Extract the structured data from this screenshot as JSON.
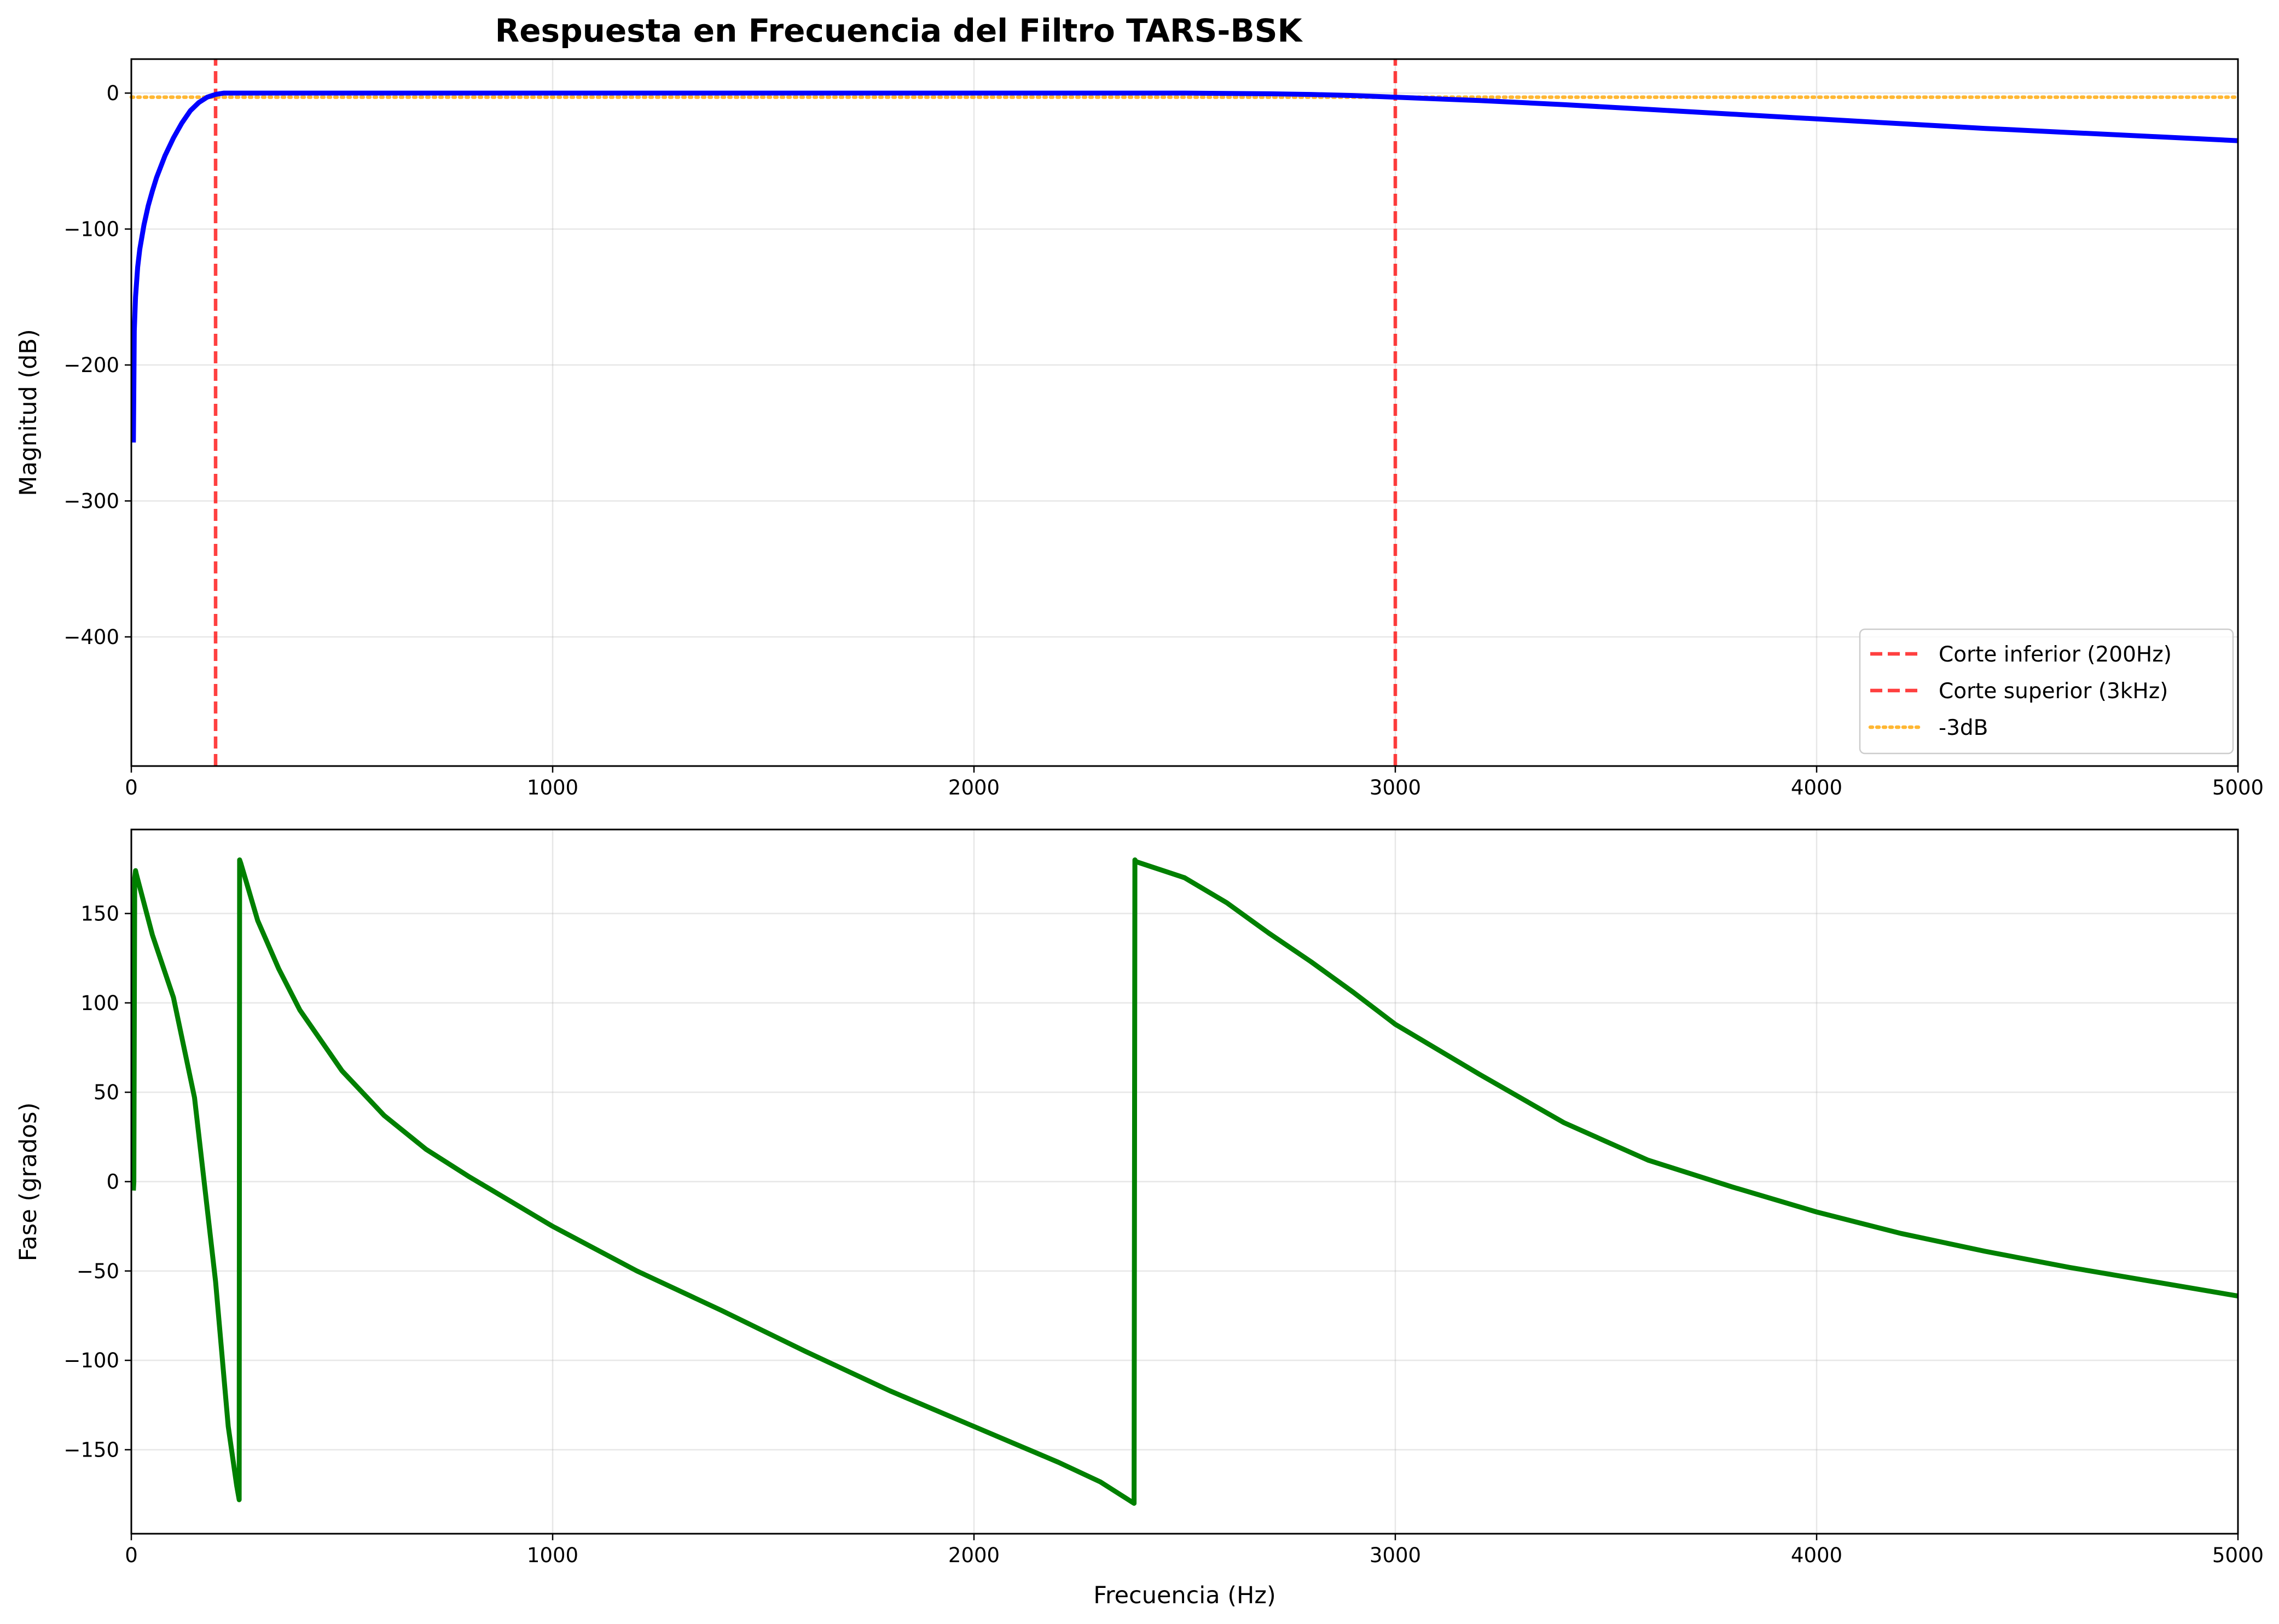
{
  "chart_data": [
    {
      "type": "line",
      "title": "Respuesta en Frecuencia del Filtro TARS-BSK",
      "xlabel": "",
      "ylabel": "Magnitud (dB)",
      "xlim": [
        0,
        5000
      ],
      "ylim": [
        -495,
        25
      ],
      "xticks": [
        0,
        1000,
        2000,
        3000,
        4000,
        5000
      ],
      "xtick_labels": [
        "0",
        "1000",
        "2000",
        "3000",
        "4000",
        "5000"
      ],
      "yticks": [
        0,
        -100,
        -200,
        -300,
        -400
      ],
      "ytick_labels": [
        "0",
        "−100",
        "−200",
        "−300",
        "−400"
      ],
      "grid": true,
      "legend": "lower-right",
      "series": [
        {
          "color": "#0000ff",
          "style": "solid",
          "x": [
            5,
            7,
            10,
            15,
            20,
            30,
            40,
            50,
            60,
            80,
            100,
            120,
            140,
            160,
            180,
            200,
            220,
            250,
            300,
            500,
            1000,
            1500,
            2000,
            2500,
            2700,
            2800,
            2900,
            3000,
            3200,
            3400,
            3600,
            3800,
            4000,
            4200,
            4400,
            4600,
            4800,
            5000
          ],
          "y": [
            -257,
            -175,
            -150,
            -128,
            -115,
            -97,
            -83,
            -72,
            -62,
            -46,
            -33,
            -22,
            -13,
            -7,
            -3,
            -1,
            0,
            0,
            0,
            0,
            0,
            0,
            0,
            0,
            -0.5,
            -1,
            -1.8,
            -3,
            -5.5,
            -8.5,
            -12,
            -15.5,
            -19,
            -22.5,
            -26,
            -29,
            -32,
            -35
          ]
        },
        {
          "name": "Corte inferior (200Hz)",
          "color": "#ff0000",
          "style": "dashed",
          "x": [
            200,
            200
          ],
          "y": [
            -495,
            25
          ]
        },
        {
          "name": "Corte superior (3kHz)",
          "color": "#ff0000",
          "style": "dashed",
          "x": [
            3000,
            3000
          ],
          "y": [
            -495,
            25
          ]
        },
        {
          "name": "-3dB",
          "color": "#ffa500",
          "style": "dotted",
          "x": [
            0,
            5000
          ],
          "y": [
            -3,
            -3
          ]
        }
      ]
    },
    {
      "type": "line",
      "title": "",
      "xlabel": "Frecuencia (Hz)",
      "ylabel": "Fase (grados)",
      "xlim": [
        0,
        5000
      ],
      "ylim": [
        -197,
        197
      ],
      "xticks": [
        0,
        1000,
        2000,
        3000,
        4000,
        5000
      ],
      "xtick_labels": [
        "0",
        "1000",
        "2000",
        "3000",
        "4000",
        "5000"
      ],
      "yticks": [
        150,
        100,
        50,
        0,
        -50,
        -100,
        -150
      ],
      "ytick_labels": [
        "150",
        "100",
        "50",
        "0",
        "−50",
        "−100",
        "−150"
      ],
      "grid": true,
      "series": [
        {
          "color": "#008000",
          "style": "solid",
          "x": [
            5,
            6,
            8,
            10,
            12,
            50,
            100,
            150,
            200,
            230,
            250,
            256,
            257,
            260,
            270,
            300,
            350,
            400,
            500,
            600,
            700,
            800,
            900,
            1000,
            1200,
            1400,
            1600,
            1800,
            2000,
            2100,
            2200,
            2300,
            2380,
            2382,
            2385,
            2500,
            2600,
            2700,
            2800,
            2900,
            3000,
            3200,
            3400,
            3600,
            3800,
            4000,
            4200,
            4400,
            4600,
            4800,
            5000
          ],
          "y": [
            -5,
            0,
            170,
            174,
            172,
            138,
            103,
            47,
            -56,
            -137,
            -170,
            -178,
            180,
            178,
            170,
            146,
            119,
            96,
            62,
            37,
            18,
            3,
            -11,
            -25,
            -50,
            -72,
            -95,
            -117,
            -137,
            -147,
            -157,
            -168,
            -180,
            180,
            179,
            170,
            156,
            139,
            123,
            106,
            88,
            60,
            33,
            12,
            -3,
            -17,
            -29,
            -39,
            -48,
            -56,
            -64
          ]
        }
      ]
    }
  ]
}
